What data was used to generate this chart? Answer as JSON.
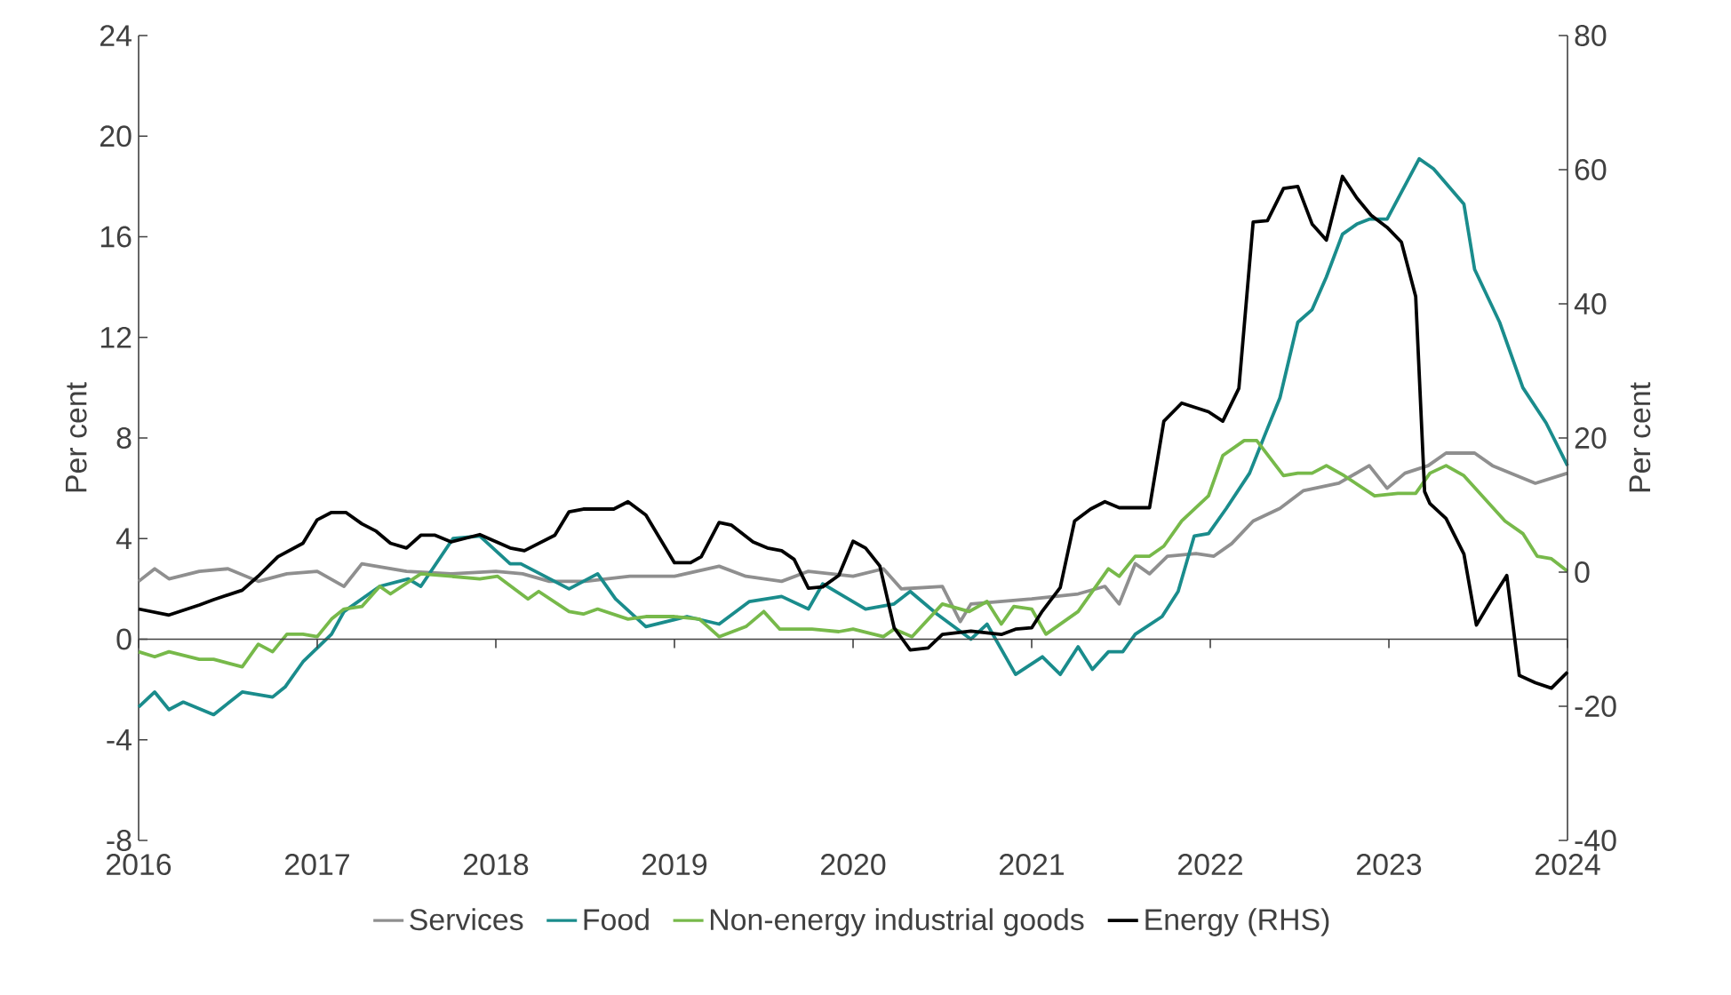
{
  "chart_data": {
    "type": "line",
    "ylabel": "Per cent",
    "y2label": "Per cent",
    "xlim": [
      2016,
      2024
    ],
    "xticks": [
      2016,
      2017,
      2018,
      2019,
      2020,
      2021,
      2022,
      2023,
      2024
    ],
    "ylim": [
      -8,
      24
    ],
    "yticks": [
      -8,
      -4,
      0,
      4,
      8,
      12,
      16,
      20,
      24
    ],
    "y2lim": [
      -40,
      80
    ],
    "y2ticks": [
      -40,
      -20,
      0,
      20,
      40,
      60,
      80
    ],
    "legend": "bottom",
    "marker": "none",
    "line_style": "solid",
    "series": [
      {
        "name": "Services",
        "color": "#8f8f8f",
        "x": [
          2016.0,
          2016.09,
          2016.17,
          2016.34,
          2016.5,
          2016.67,
          2016.83,
          2017.0,
          2017.15,
          2017.25,
          2017.5,
          2017.75,
          2018.0,
          2018.15,
          2018.3,
          2018.5,
          2018.75,
          2019.0,
          2019.25,
          2019.4,
          2019.6,
          2019.75,
          2020.0,
          2020.17,
          2020.27,
          2020.5,
          2020.6,
          2020.66,
          2021.0,
          2021.26,
          2021.41,
          2021.49,
          2021.58,
          2021.66,
          2021.76,
          2021.92,
          2022.02,
          2022.12,
          2022.24,
          2022.39,
          2022.52,
          2022.72,
          2022.89,
          2022.99,
          2023.09,
          2023.22,
          2023.32,
          2023.48,
          2023.58,
          2023.82,
          2024.0
        ],
        "values": [
          2.3,
          2.8,
          2.4,
          2.7,
          2.8,
          2.3,
          2.6,
          2.7,
          2.1,
          3.0,
          2.7,
          2.6,
          2.7,
          2.6,
          2.3,
          2.3,
          2.5,
          2.5,
          2.9,
          2.5,
          2.3,
          2.7,
          2.5,
          2.8,
          2.0,
          2.1,
          0.7,
          1.4,
          1.6,
          1.8,
          2.1,
          1.4,
          3.0,
          2.6,
          3.3,
          3.4,
          3.3,
          3.8,
          4.7,
          5.2,
          5.9,
          6.2,
          6.9,
          6.0,
          6.6,
          6.9,
          7.4,
          7.4,
          6.9,
          6.2,
          6.6
        ]
      },
      {
        "name": "Food",
        "color": "#1a8c8c",
        "x": [
          2016.0,
          2016.09,
          2016.17,
          2016.25,
          2016.42,
          2016.58,
          2016.75,
          2016.82,
          2016.92,
          2017.08,
          2017.15,
          2017.35,
          2017.51,
          2017.58,
          2017.76,
          2017.91,
          2018.08,
          2018.14,
          2018.41,
          2018.57,
          2018.67,
          2018.84,
          2019.07,
          2019.25,
          2019.42,
          2019.6,
          2019.75,
          2019.83,
          2020.07,
          2020.23,
          2020.32,
          2020.47,
          2020.66,
          2020.75,
          2020.91,
          2021.06,
          2021.16,
          2021.26,
          2021.34,
          2021.43,
          2021.51,
          2021.58,
          2021.73,
          2021.82,
          2021.91,
          2021.99,
          2022.09,
          2022.22,
          2022.31,
          2022.39,
          2022.49,
          2022.57,
          2022.65,
          2022.74,
          2022.82,
          2022.89,
          2022.99,
          2023.17,
          2023.25,
          2023.42,
          2023.48,
          2023.62,
          2023.75,
          2023.88,
          2024.0
        ],
        "values": [
          -2.7,
          -2.1,
          -2.8,
          -2.5,
          -3.0,
          -2.1,
          -2.3,
          -1.9,
          -0.9,
          0.2,
          1.1,
          2.1,
          2.4,
          2.1,
          4.0,
          4.1,
          3.0,
          3.0,
          2.0,
          2.6,
          1.6,
          0.5,
          0.9,
          0.6,
          1.5,
          1.7,
          1.2,
          2.2,
          1.2,
          1.4,
          1.9,
          1.0,
          0.0,
          0.6,
          -1.4,
          -0.7,
          -1.4,
          -0.3,
          -1.2,
          -0.5,
          -0.5,
          0.2,
          0.9,
          1.9,
          4.1,
          4.2,
          5.2,
          6.6,
          8.2,
          9.6,
          12.6,
          13.1,
          14.4,
          16.1,
          16.5,
          16.7,
          16.7,
          19.1,
          18.7,
          17.3,
          14.7,
          12.6,
          10.0,
          8.6,
          6.9
        ]
      },
      {
        "name": "Non-energy industrial goods",
        "color": "#77b94a",
        "x": [
          2016.0,
          2016.09,
          2016.17,
          2016.34,
          2016.42,
          2016.58,
          2016.67,
          2016.75,
          2016.83,
          2016.92,
          2017.0,
          2017.08,
          2017.15,
          2017.25,
          2017.35,
          2017.41,
          2017.58,
          2017.75,
          2017.91,
          2018.01,
          2018.18,
          2018.24,
          2018.41,
          2018.49,
          2018.57,
          2018.74,
          2018.84,
          2019.0,
          2019.14,
          2019.25,
          2019.4,
          2019.5,
          2019.59,
          2019.77,
          2019.92,
          2020.0,
          2020.17,
          2020.23,
          2020.33,
          2020.5,
          2020.65,
          2020.75,
          2020.83,
          2020.9,
          2021.0,
          2021.08,
          2021.26,
          2021.43,
          2021.49,
          2021.58,
          2021.66,
          2021.74,
          2021.84,
          2021.99,
          2022.07,
          2022.19,
          2022.26,
          2022.41,
          2022.49,
          2022.57,
          2022.65,
          2022.75,
          2022.92,
          2023.05,
          2023.15,
          2023.23,
          2023.32,
          2023.42,
          2023.65,
          2023.75,
          2023.83,
          2023.91,
          2024.0
        ],
        "values": [
          -0.5,
          -0.7,
          -0.5,
          -0.8,
          -0.8,
          -1.1,
          -0.2,
          -0.5,
          0.2,
          0.2,
          0.1,
          0.8,
          1.2,
          1.3,
          2.1,
          1.8,
          2.6,
          2.5,
          2.4,
          2.5,
          1.6,
          1.9,
          1.1,
          1.0,
          1.2,
          0.8,
          0.9,
          0.9,
          0.8,
          0.1,
          0.5,
          1.1,
          0.4,
          0.4,
          0.3,
          0.4,
          0.1,
          0.4,
          0.1,
          1.4,
          1.1,
          1.5,
          0.6,
          1.3,
          1.2,
          0.2,
          1.1,
          2.8,
          2.5,
          3.3,
          3.3,
          3.7,
          4.7,
          5.7,
          7.3,
          7.9,
          7.9,
          6.5,
          6.6,
          6.6,
          6.9,
          6.5,
          5.7,
          5.8,
          5.8,
          6.6,
          6.9,
          6.5,
          4.7,
          4.2,
          3.3,
          3.2,
          2.7
        ]
      },
      {
        "name": "Energy (RHS)",
        "color": "#000000",
        "axis": "y2",
        "x": [
          2016.0,
          2016.17,
          2016.34,
          2016.42,
          2016.58,
          2016.67,
          2016.78,
          2016.92,
          2017.0,
          2017.08,
          2017.16,
          2017.25,
          2017.33,
          2017.41,
          2017.5,
          2017.58,
          2017.66,
          2017.75,
          2017.91,
          2018.08,
          2018.16,
          2018.33,
          2018.41,
          2018.49,
          2018.66,
          2018.74,
          2018.84,
          2019.0,
          2019.09,
          2019.15,
          2019.25,
          2019.32,
          2019.44,
          2019.52,
          2019.6,
          2019.67,
          2019.75,
          2019.83,
          2019.92,
          2020.0,
          2020.07,
          2020.15,
          2020.23,
          2020.32,
          2020.42,
          2020.5,
          2020.66,
          2020.83,
          2020.91,
          2021.0,
          2021.06,
          2021.16,
          2021.24,
          2021.33,
          2021.41,
          2021.49,
          2021.66,
          2021.74,
          2021.84,
          2021.99,
          2022.07,
          2022.16,
          2022.24,
          2022.32,
          2022.41,
          2022.49,
          2022.57,
          2022.65,
          2022.74,
          2022.82,
          2022.9,
          2022.99,
          2023.07,
          2023.15,
          2023.2,
          2023.23,
          2023.32,
          2023.42,
          2023.49,
          2023.57,
          2023.66,
          2023.73,
          2023.82,
          2023.91,
          2024.0
        ],
        "values": [
          -5.5,
          -6.4,
          -4.9,
          -4.1,
          -2.7,
          -0.6,
          2.3,
          4.3,
          7.8,
          8.9,
          8.9,
          7.2,
          6.1,
          4.3,
          3.6,
          5.5,
          5.5,
          4.5,
          5.6,
          3.6,
          3.2,
          5.5,
          9.0,
          9.4,
          9.4,
          10.5,
          8.5,
          1.4,
          1.4,
          2.3,
          7.4,
          7.0,
          4.5,
          3.6,
          3.2,
          1.9,
          -2.4,
          -2.2,
          -0.5,
          4.6,
          3.6,
          0.9,
          -8.3,
          -11.6,
          -11.3,
          -9.3,
          -8.8,
          -9.3,
          -8.5,
          -8.3,
          -5.8,
          -2.3,
          7.6,
          9.4,
          10.5,
          9.6,
          9.6,
          22.5,
          25.2,
          23.9,
          22.5,
          27.4,
          52.2,
          52.4,
          57.2,
          57.5,
          51.9,
          49.5,
          59.0,
          55.8,
          53.2,
          51.4,
          49.2,
          41.1,
          12.0,
          10.2,
          8.0,
          2.7,
          -7.9,
          -4.3,
          -0.5,
          -15.4,
          -16.5,
          -17.3,
          -14.9
        ]
      }
    ]
  }
}
